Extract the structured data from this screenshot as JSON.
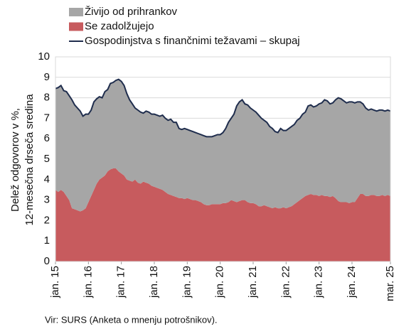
{
  "chart_data": {
    "type": "area",
    "stacked": true,
    "ylabel": [
      "Delež odgovorov v %,",
      "12-mesečna  drseča sredina"
    ],
    "source": "Vir: SURS (Anketa o mnenju potrošnikov).",
    "categories": [
      "jan. 15",
      null,
      null,
      null,
      null,
      null,
      null,
      null,
      null,
      null,
      null,
      null,
      "jan. 16",
      null,
      null,
      null,
      null,
      null,
      null,
      null,
      null,
      null,
      null,
      null,
      "jan. 17",
      null,
      null,
      null,
      null,
      null,
      null,
      null,
      null,
      null,
      null,
      null,
      "jan. 18",
      null,
      null,
      null,
      null,
      null,
      null,
      null,
      null,
      null,
      null,
      null,
      "jan. 19",
      null,
      null,
      null,
      null,
      null,
      null,
      null,
      null,
      null,
      null,
      null,
      "jan. 20",
      null,
      null,
      null,
      null,
      null,
      null,
      null,
      null,
      null,
      null,
      null,
      "jan. 21",
      null,
      null,
      null,
      null,
      null,
      null,
      null,
      null,
      null,
      null,
      null,
      "jan. 22",
      null,
      null,
      null,
      null,
      null,
      null,
      null,
      null,
      null,
      null,
      null,
      "jan. 23",
      null,
      null,
      null,
      null,
      null,
      null,
      null,
      null,
      null,
      null,
      null,
      "jan. 24",
      null,
      null,
      null,
      null,
      null,
      null,
      null,
      null,
      null,
      null,
      null,
      null,
      null,
      "mar. 25"
    ],
    "series": [
      {
        "name": "Se zadolžujejo",
        "type": "area",
        "color": "#c75b5e",
        "legend_order": 1,
        "values": [
          3.5,
          3.4,
          3.5,
          3.4,
          3.2,
          3.0,
          2.6,
          2.55,
          2.5,
          2.45,
          2.5,
          2.6,
          2.9,
          3.2,
          3.5,
          3.8,
          4.0,
          4.1,
          4.2,
          4.4,
          4.5,
          4.55,
          4.55,
          4.4,
          4.3,
          4.2,
          4.0,
          3.95,
          3.9,
          4.0,
          3.85,
          3.8,
          3.9,
          3.85,
          3.8,
          3.7,
          3.65,
          3.6,
          3.55,
          3.5,
          3.4,
          3.3,
          3.25,
          3.2,
          3.15,
          3.1,
          3.1,
          3.05,
          3.1,
          3.05,
          3.0,
          3.0,
          2.95,
          2.9,
          2.8,
          2.75,
          2.75,
          2.8,
          2.8,
          2.8,
          2.8,
          2.85,
          2.85,
          2.9,
          3.0,
          2.95,
          2.9,
          2.95,
          3.0,
          3.0,
          2.9,
          2.85,
          2.85,
          2.8,
          2.7,
          2.7,
          2.75,
          2.7,
          2.65,
          2.6,
          2.65,
          2.6,
          2.6,
          2.65,
          2.6,
          2.65,
          2.7,
          2.8,
          2.9,
          3.0,
          3.1,
          3.2,
          3.25,
          3.3,
          3.25,
          3.25,
          3.2,
          3.25,
          3.2,
          3.2,
          3.15,
          3.2,
          3.1,
          2.95,
          2.9,
          2.9,
          2.9,
          2.85,
          2.9,
          2.9,
          3.1,
          3.3,
          3.3,
          3.2,
          3.2,
          3.25,
          3.25,
          3.2,
          3.2,
          3.25,
          3.2,
          3.25,
          3.2
        ]
      },
      {
        "name": "Živijo od prihrankov",
        "type": "area",
        "color": "#a6a6a6",
        "legend_order": 0,
        "values": [
          4.95,
          5.1,
          5.1,
          4.95,
          5.1,
          5.1,
          5.3,
          5.1,
          5.0,
          4.9,
          4.6,
          4.6,
          4.3,
          4.2,
          4.3,
          4.15,
          4.05,
          3.9,
          4.1,
          4.0,
          4.2,
          4.2,
          4.3,
          4.5,
          4.5,
          4.4,
          4.2,
          3.95,
          3.8,
          3.5,
          3.55,
          3.5,
          3.35,
          3.5,
          3.5,
          3.5,
          3.55,
          3.55,
          3.55,
          3.65,
          3.6,
          3.6,
          3.7,
          3.6,
          3.65,
          3.4,
          3.35,
          3.45,
          3.35,
          3.35,
          3.35,
          3.3,
          3.3,
          3.3,
          3.35,
          3.35,
          3.35,
          3.3,
          3.35,
          3.4,
          3.4,
          3.45,
          3.65,
          3.9,
          4.0,
          4.25,
          4.7,
          4.85,
          4.9,
          4.7,
          4.75,
          4.65,
          4.55,
          4.5,
          4.45,
          4.3,
          4.15,
          4.1,
          3.95,
          3.9,
          3.7,
          3.7,
          3.9,
          3.75,
          3.8,
          3.85,
          3.9,
          3.9,
          4.0,
          4.0,
          4.1,
          4.1,
          4.35,
          4.35,
          4.3,
          4.35,
          4.5,
          4.5,
          4.7,
          4.65,
          4.55,
          4.55,
          4.8,
          5.05,
          5.05,
          4.95,
          4.85,
          4.95,
          4.9,
          4.85,
          4.7,
          4.5,
          4.4,
          4.3,
          4.2,
          4.2,
          4.15,
          4.15,
          4.2,
          4.15,
          4.15,
          4.15,
          4.15
        ]
      },
      {
        "name": "Gospodinjstva s finančnimi težavami – skupaj",
        "type": "line",
        "color": "#1f2d4d",
        "legend_order": 2,
        "values": [
          8.45,
          8.5,
          8.6,
          8.35,
          8.3,
          8.1,
          7.9,
          7.65,
          7.5,
          7.35,
          7.1,
          7.2,
          7.2,
          7.4,
          7.8,
          7.95,
          8.05,
          8.0,
          8.3,
          8.4,
          8.7,
          8.75,
          8.85,
          8.9,
          8.8,
          8.6,
          8.2,
          7.9,
          7.7,
          7.5,
          7.4,
          7.3,
          7.25,
          7.35,
          7.3,
          7.2,
          7.2,
          7.15,
          7.1,
          7.15,
          7.0,
          6.9,
          6.95,
          6.8,
          6.8,
          6.5,
          6.45,
          6.5,
          6.45,
          6.4,
          6.35,
          6.3,
          6.25,
          6.2,
          6.15,
          6.1,
          6.1,
          6.1,
          6.15,
          6.2,
          6.2,
          6.3,
          6.5,
          6.8,
          7.0,
          7.2,
          7.6,
          7.8,
          7.9,
          7.7,
          7.65,
          7.5,
          7.4,
          7.3,
          7.15,
          7.0,
          6.9,
          6.8,
          6.6,
          6.5,
          6.35,
          6.3,
          6.5,
          6.4,
          6.4,
          6.5,
          6.6,
          6.7,
          6.9,
          7.0,
          7.2,
          7.3,
          7.6,
          7.65,
          7.55,
          7.6,
          7.7,
          7.75,
          7.9,
          7.85,
          7.7,
          7.75,
          7.9,
          8.0,
          7.95,
          7.85,
          7.75,
          7.8,
          7.8,
          7.75,
          7.8,
          7.8,
          7.7,
          7.5,
          7.4,
          7.45,
          7.4,
          7.35,
          7.4,
          7.4,
          7.35,
          7.4,
          7.35
        ]
      }
    ],
    "ylim": [
      0,
      10
    ],
    "yticks": [
      0,
      1,
      2,
      3,
      4,
      5,
      6,
      7,
      8,
      9,
      10
    ],
    "grid": true
  }
}
